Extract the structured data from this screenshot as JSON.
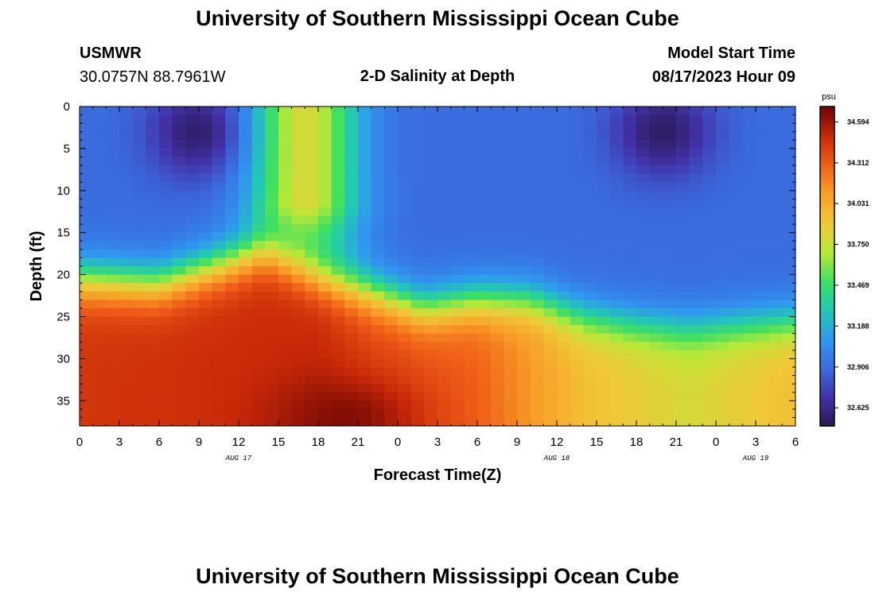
{
  "header": {
    "title": "University of Southern Mississippi Ocean Cube",
    "station_name": "USMWR",
    "station_coords": "30.0757N  88.7961W",
    "plot_title": "2-D Salinity at Depth",
    "start_label": "Model Start Time",
    "start_value": "08/17/2023 Hour 09"
  },
  "footer": {
    "title": "University of Southern Mississippi Ocean Cube"
  },
  "chart_data": {
    "type": "heatmap",
    "title": "2-D Salinity at Depth",
    "xlabel": "Forecast Time(Z)",
    "ylabel": "Depth (ft)",
    "x_tick_labels": [
      "0",
      "3",
      "6",
      "9",
      "12",
      "15",
      "18",
      "21",
      "0",
      "3",
      "6",
      "9",
      "12",
      "15",
      "18",
      "21",
      "0",
      "3",
      "6"
    ],
    "x_range_hours": [
      0,
      54
    ],
    "date_labels": [
      {
        "label": "AUG 17",
        "hour": 12
      },
      {
        "label": "AUG 18",
        "hour": 36
      },
      {
        "label": "AUG 19",
        "hour": 51
      }
    ],
    "y_ticks": [
      0,
      5,
      10,
      15,
      20,
      25,
      30,
      35
    ],
    "y_range_ft": [
      0,
      38
    ],
    "y_inverted": true,
    "colorbar": {
      "unit": "psu",
      "min": 32.5,
      "max": 34.7,
      "tick_values": [
        32.625,
        32.906,
        33.188,
        33.469,
        33.75,
        34.031,
        34.312,
        34.594
      ],
      "tick_labels": [
        "32.625",
        "32.906",
        "33.188",
        "33.469",
        "33.750",
        "34.031",
        "34.312",
        "34.594"
      ],
      "colormap": [
        "#2a1650",
        "#4232a8",
        "#3a6ce0",
        "#2f98f0",
        "#22c8b4",
        "#40e060",
        "#b8e838",
        "#f0c838",
        "#f8a028",
        "#f06018",
        "#c82808",
        "#6a0404"
      ]
    },
    "fresh_surface_psu": 32.9,
    "features": [
      {
        "kind": "fresh_core",
        "hour": 9,
        "depth_ft": 3,
        "psu": 32.55
      },
      {
        "kind": "fresh_core",
        "hour": 44,
        "depth_ft": 3,
        "psu": 32.55
      },
      {
        "kind": "saline_plume",
        "hour": 17,
        "depth_ft": 0,
        "psu": 33.8
      },
      {
        "kind": "deep_max",
        "hour": 20,
        "depth_ft": 37,
        "psu": 34.65
      }
    ],
    "halocline_depth_ft": [
      {
        "hour": 0,
        "depth": 20.5
      },
      {
        "hour": 6,
        "depth": 21
      },
      {
        "hour": 10,
        "depth": 19
      },
      {
        "hour": 14,
        "depth": 17
      },
      {
        "hour": 18,
        "depth": 20
      },
      {
        "hour": 22,
        "depth": 22
      },
      {
        "hour": 26,
        "depth": 24
      },
      {
        "hour": 30,
        "depth": 23
      },
      {
        "hour": 34,
        "depth": 23
      },
      {
        "hour": 38,
        "depth": 25
      },
      {
        "hour": 42,
        "depth": 26
      },
      {
        "hour": 46,
        "depth": 26.5
      },
      {
        "hour": 50,
        "depth": 26
      },
      {
        "hour": 54,
        "depth": 25.5
      }
    ],
    "deep_psu": [
      {
        "hour": 0,
        "psu": 34.45
      },
      {
        "hour": 18,
        "psu": 34.5
      },
      {
        "hour": 22,
        "psu": 34.4
      },
      {
        "hour": 30,
        "psu": 34.3
      },
      {
        "hour": 38,
        "psu": 33.95
      },
      {
        "hour": 46,
        "psu": 33.8
      },
      {
        "hour": 54,
        "psu": 33.95
      }
    ]
  }
}
